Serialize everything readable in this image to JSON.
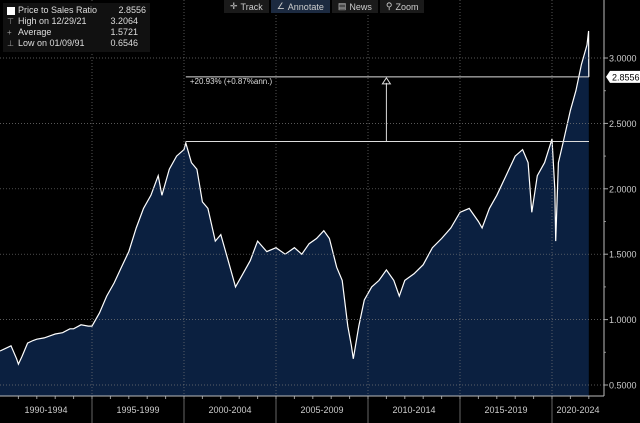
{
  "toolbar": {
    "items": [
      {
        "label": "Track",
        "icon": "crosshair-icon"
      },
      {
        "label": "Annotate",
        "icon": "pencil-icon",
        "active": true
      },
      {
        "label": "News",
        "icon": "news-icon"
      },
      {
        "label": "Zoom",
        "icon": "magnifier-icon"
      }
    ]
  },
  "legend": {
    "series": {
      "label": "Price to Sales Ratio",
      "value": "2.8556"
    },
    "high": {
      "label": "High on 12/29/21",
      "value": "3.2064"
    },
    "average": {
      "label": "Average",
      "value": "1.5721"
    },
    "low": {
      "label": "Low on 01/09/91",
      "value": "0.6546"
    }
  },
  "chart_data": {
    "type": "area",
    "x_unit": "year",
    "xlim": [
      1990,
      2022.8
    ],
    "ylim": [
      0.42,
      3.28
    ],
    "y_ticks": [
      0.5,
      1.0,
      1.5,
      2.0,
      2.5,
      3.0
    ],
    "y_tick_labels": [
      "0.5000",
      "1.0000",
      "1.5000",
      "2.0000",
      "2.5000",
      "3.0000"
    ],
    "x_tick_labels": [
      "1990-1994",
      "1995-1999",
      "2000-2004",
      "2005-2009",
      "2010-2014",
      "2015-2019",
      "2020-2024"
    ],
    "x_periods": [
      1990,
      1995,
      2000,
      2005,
      2010,
      2015,
      2020
    ],
    "last_value_label": "2.8556",
    "last_value": 2.8556,
    "grid": true,
    "colors": {
      "fill": "#0b2040",
      "line": "#ffffff",
      "background": "#000000"
    },
    "annotation": {
      "label": "+20.93% (+0.87%ann.)",
      "from_value": 2.3616,
      "to_value": 2.8556,
      "from_x": 2000.1,
      "arrow_x": 2011.0
    },
    "series": [
      {
        "x": [
          1990.0,
          1990.3,
          1990.6,
          1990.9,
          1991.0,
          1991.2,
          1991.5,
          1991.8,
          1992.0,
          1992.4,
          1992.8,
          1993.0,
          1993.4,
          1993.8,
          1994.0,
          1994.4,
          1994.8,
          1995.0,
          1995.4,
          1995.8,
          1996.2,
          1996.6,
          1997.0,
          1997.4,
          1997.8,
          1998.2,
          1998.6,
          1998.8,
          1999.2,
          1999.6,
          2000.0,
          2000.1,
          2000.4,
          2000.7,
          2001.0,
          2001.3,
          2001.7,
          2002.0,
          2002.4,
          2002.7,
          2002.8,
          2003.2,
          2003.6,
          2004.0,
          2004.5,
          2005.0,
          2005.5,
          2006.0,
          2006.4,
          2006.8,
          2007.2,
          2007.6,
          2007.9,
          2008.3,
          2008.6,
          2008.9,
          2009.1,
          2009.2,
          2009.5,
          2009.8,
          2010.2,
          2010.6,
          2011.0,
          2011.4,
          2011.7,
          2012.0,
          2012.5,
          2013.0,
          2013.5,
          2014.0,
          2014.5,
          2015.0,
          2015.5,
          2016.0,
          2016.2,
          2016.6,
          2017.0,
          2017.5,
          2018.0,
          2018.4,
          2018.7,
          2018.9,
          2019.2,
          2019.6,
          2020.0,
          2020.15,
          2020.2,
          2020.35,
          2020.6,
          2021.0,
          2021.3,
          2021.6,
          2021.9,
          2021.99,
          2022.0
        ],
        "values": [
          0.76,
          0.78,
          0.8,
          0.7,
          0.66,
          0.72,
          0.82,
          0.84,
          0.85,
          0.86,
          0.88,
          0.89,
          0.9,
          0.93,
          0.93,
          0.96,
          0.95,
          0.95,
          1.05,
          1.18,
          1.28,
          1.4,
          1.52,
          1.7,
          1.85,
          1.95,
          2.1,
          1.95,
          2.15,
          2.25,
          2.3,
          2.35,
          2.2,
          2.15,
          1.9,
          1.85,
          1.6,
          1.65,
          1.45,
          1.3,
          1.25,
          1.35,
          1.45,
          1.6,
          1.52,
          1.55,
          1.5,
          1.55,
          1.5,
          1.58,
          1.62,
          1.68,
          1.62,
          1.4,
          1.3,
          0.95,
          0.8,
          0.7,
          0.95,
          1.15,
          1.25,
          1.3,
          1.38,
          1.3,
          1.18,
          1.3,
          1.35,
          1.42,
          1.55,
          1.62,
          1.7,
          1.82,
          1.85,
          1.75,
          1.7,
          1.85,
          1.95,
          2.1,
          2.25,
          2.3,
          2.2,
          1.82,
          2.1,
          2.2,
          2.38,
          2.0,
          1.6,
          2.2,
          2.35,
          2.6,
          2.75,
          2.95,
          3.1,
          3.2064,
          2.8556
        ]
      }
    ]
  }
}
